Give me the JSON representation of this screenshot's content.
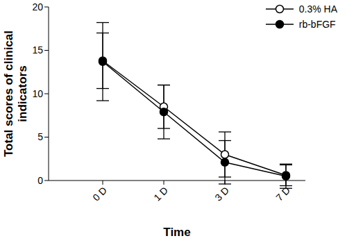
{
  "chart_data": {
    "type": "line",
    "x_label": "Time",
    "y_label": "Total scores of clinical indicators",
    "categories": [
      "0 D",
      "1 D",
      "3 D",
      "7 D"
    ],
    "series": [
      {
        "name": "0.3% HA",
        "color": "#000000",
        "marker": "open_circle",
        "values": [
          13.8,
          8.5,
          3.0,
          0.6
        ],
        "errors": [
          3.2,
          2.5,
          2.6,
          1.2
        ]
      },
      {
        "name": "rb-bFGF",
        "color": "#000000",
        "marker": "filled_circle",
        "values": [
          13.7,
          7.9,
          2.1,
          0.5
        ],
        "errors": [
          4.5,
          3.1,
          2.5,
          1.4
        ]
      }
    ],
    "ylim": [
      0,
      20
    ],
    "yticks": [
      0,
      5,
      10,
      15,
      20
    ],
    "grid": false,
    "legend": "upper right"
  }
}
